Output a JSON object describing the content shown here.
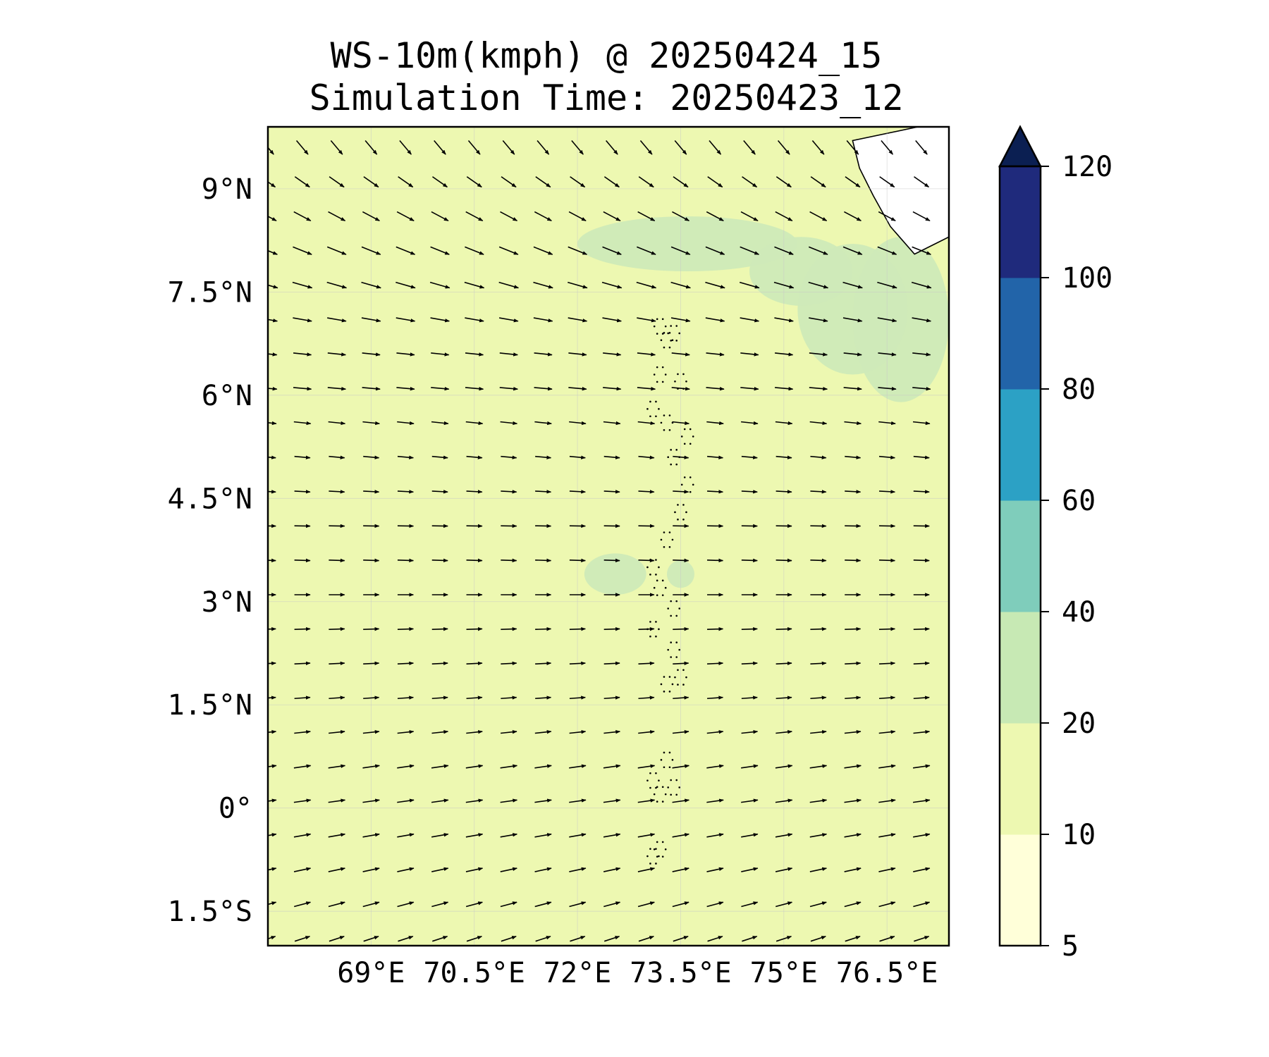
{
  "title_line1": "WS-10m(kmph) @ 20250424_15",
  "title_line2": "Simulation Time: 20250423_12",
  "chart_data": {
    "type": "heatmap",
    "extent": {
      "lon": [
        67.5,
        77.4
      ],
      "lat": [
        -2.0,
        9.9
      ]
    },
    "x_ticks": [
      {
        "value": 69.0,
        "label": "69°E"
      },
      {
        "value": 70.5,
        "label": "70.5°E"
      },
      {
        "value": 72.0,
        "label": "72°E"
      },
      {
        "value": 73.5,
        "label": "73.5°E"
      },
      {
        "value": 75.0,
        "label": "75°E"
      },
      {
        "value": 76.5,
        "label": "76.5°E"
      }
    ],
    "y_ticks": [
      {
        "value": 9.0,
        "label": "9°N"
      },
      {
        "value": 7.5,
        "label": "7.5°N"
      },
      {
        "value": 6.0,
        "label": "6°N"
      },
      {
        "value": 4.5,
        "label": "4.5°N"
      },
      {
        "value": 3.0,
        "label": "3°N"
      },
      {
        "value": 1.5,
        "label": "1.5°N"
      },
      {
        "value": 0.0,
        "label": "0°"
      },
      {
        "value": -1.5,
        "label": "1.5°S"
      }
    ],
    "colorbar": {
      "levels": [
        5,
        10,
        20,
        40,
        60,
        80,
        100,
        120
      ],
      "labels": [
        "5",
        "10",
        "20",
        "40",
        "60",
        "80",
        "100",
        "120"
      ],
      "colors": [
        "#ffffd9",
        "#edf8b1",
        "#c7e9b4",
        "#7fcdbb",
        "#2ca1c5",
        "#2264a9",
        "#1f2a7c"
      ],
      "extend": "max",
      "extend_color": "#0b1f52"
    },
    "field": {
      "background_band_color": "#edf8b1",
      "higher_band_color": "#cfeab8",
      "high_wind_areas": [
        {
          "lon": [
            76.0,
            77.4
          ],
          "lat": [
            5.9,
            8.3
          ]
        },
        {
          "lon": [
            75.2,
            76.8
          ],
          "lat": [
            6.3,
            8.2
          ]
        },
        {
          "lon": [
            72.0,
            75.2
          ],
          "lat": [
            7.8,
            8.6
          ]
        },
        {
          "lon": [
            74.5,
            76.0
          ],
          "lat": [
            7.3,
            8.3
          ]
        },
        {
          "lon": [
            72.1,
            73.0
          ],
          "lat": [
            3.1,
            3.7
          ]
        },
        {
          "lon": [
            73.3,
            73.7
          ],
          "lat": [
            3.2,
            3.6
          ]
        }
      ],
      "land_color": "#ffffff"
    },
    "wind_vectors": {
      "description_fields": "lon, lat, direction in degrees clockwise from east (screen), relative length",
      "rows": [
        {
          "lat": 9.6,
          "angle": 50,
          "len": 0.8
        },
        {
          "lat": 9.1,
          "angle": 35,
          "len": 0.8
        },
        {
          "lat": 8.6,
          "angle": 28,
          "len": 0.85
        },
        {
          "lat": 8.1,
          "angle": 22,
          "len": 0.9
        },
        {
          "lat": 7.6,
          "angle": 16,
          "len": 0.9
        },
        {
          "lat": 7.1,
          "angle": 10,
          "len": 0.85
        },
        {
          "lat": 6.6,
          "angle": 6,
          "len": 0.8
        },
        {
          "lat": 6.1,
          "angle": 5,
          "len": 0.8
        },
        {
          "lat": 5.6,
          "angle": 6,
          "len": 0.75
        },
        {
          "lat": 5.1,
          "angle": 5,
          "len": 0.7
        },
        {
          "lat": 4.6,
          "angle": 3,
          "len": 0.7
        },
        {
          "lat": 4.1,
          "angle": 1,
          "len": 0.7
        },
        {
          "lat": 3.6,
          "angle": 2,
          "len": 0.7
        },
        {
          "lat": 3.1,
          "angle": 0,
          "len": 0.7
        },
        {
          "lat": 2.6,
          "angle": -2,
          "len": 0.7
        },
        {
          "lat": 2.1,
          "angle": -3,
          "len": 0.7
        },
        {
          "lat": 1.6,
          "angle": -4,
          "len": 0.7
        },
        {
          "lat": 1.1,
          "angle": -6,
          "len": 0.72
        },
        {
          "lat": 0.6,
          "angle": -8,
          "len": 0.75
        },
        {
          "lat": 0.1,
          "angle": -8,
          "len": 0.75
        },
        {
          "lat": -0.4,
          "angle": -10,
          "len": 0.75
        },
        {
          "lat": -0.9,
          "angle": -12,
          "len": 0.75
        },
        {
          "lat": -1.4,
          "angle": -15,
          "len": 0.75
        },
        {
          "lat": -1.9,
          "angle": -18,
          "len": 0.7
        }
      ],
      "lon_start": 67.5,
      "lon_step": 0.5,
      "count_per_row": 20
    },
    "coastline_label": "",
    "grid": true
  }
}
